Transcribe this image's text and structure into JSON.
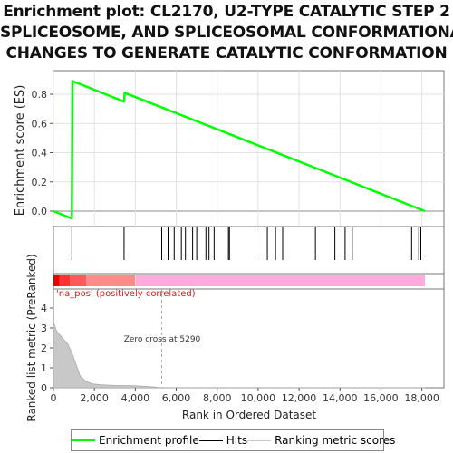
{
  "title_lines": [
    "Enrichment plot: CL2170, U2-TYPE CATALYTIC STEP 2",
    "SPLICEOSOME, AND SPLICEOSOMAL CONFORMATIONAL",
    "CHANGES TO GENERATE CATALYTIC CONFORMATION"
  ],
  "colors": {
    "es_line": "#00ff00",
    "hits": "#000000",
    "metric_fill": "#c8c8c8",
    "pos_band": "#ff0000",
    "neg_band": "#ffaadd",
    "annotation_text": "#cc2222"
  },
  "chart_data": [
    {
      "type": "line",
      "panel": "enrichment",
      "ylabel": "Enrichment score (ES)",
      "xlim": [
        0,
        19000
      ],
      "ylim": [
        -0.1,
        0.95
      ],
      "yticks": [
        "0.0",
        "0.2",
        "0.4",
        "0.6",
        "0.8"
      ],
      "ytick_values": [
        0.0,
        0.2,
        0.4,
        0.6,
        0.8
      ],
      "grid": true,
      "series": [
        {
          "name": "Enrichment profile",
          "x": [
            0,
            900,
            930,
            3450,
            3480,
            18150
          ],
          "y": [
            0.0,
            -0.05,
            0.89,
            0.75,
            0.81,
            0.0
          ]
        }
      ]
    },
    {
      "type": "scatter",
      "panel": "hits",
      "name": "Hits",
      "positions": [
        900,
        3450,
        5290,
        5600,
        5900,
        6250,
        6450,
        6800,
        7000,
        7450,
        7600,
        7850,
        8550,
        8600,
        9850,
        10450,
        10850,
        11200,
        12800,
        13750,
        14250,
        14600,
        17500,
        17850,
        17950
      ]
    },
    {
      "type": "area",
      "panel": "ranked_metric",
      "name": "Ranking metric scores",
      "ylabel": "Ranked list metric (PreRanked)",
      "xlabel": "Rank in Ordered Dataset",
      "xlim": [
        0,
        19000
      ],
      "ylim": [
        0,
        4.5
      ],
      "yticks": [
        "0",
        "1",
        "2",
        "3",
        "4"
      ],
      "ytick_values": [
        0,
        1,
        2,
        3,
        4
      ],
      "xticks": [
        "0",
        "2,000",
        "4,000",
        "6,000",
        "8,000",
        "10,000",
        "12,000",
        "14,000",
        "16,000",
        "18,000"
      ],
      "xtick_values": [
        0,
        2000,
        4000,
        6000,
        8000,
        10000,
        12000,
        14000,
        16000,
        18000
      ],
      "x": [
        0,
        150,
        400,
        700,
        900,
        1100,
        1300,
        1600,
        1900,
        2300,
        3000,
        4000,
        4600,
        5000,
        5290,
        6000,
        8000,
        12000,
        16000,
        18150
      ],
      "y": [
        3.3,
        2.85,
        2.55,
        2.2,
        1.75,
        1.2,
        0.6,
        0.32,
        0.2,
        0.15,
        0.12,
        0.1,
        0.07,
        0.03,
        0.0,
        0.0,
        0.0,
        0.0,
        0.0,
        0.0
      ],
      "annotations": {
        "pos_label": "'na_pos' (positively correlated)",
        "zero_cross": "Zero cross at 5290",
        "zero_cross_x": 5290
      }
    }
  ],
  "legend": {
    "items": [
      {
        "label": "Enrichment profile",
        "color": "#00ff00"
      },
      {
        "label": "Hits",
        "color": "#000000"
      },
      {
        "label": "Ranking metric scores",
        "color": "#c8c8c8"
      }
    ]
  }
}
